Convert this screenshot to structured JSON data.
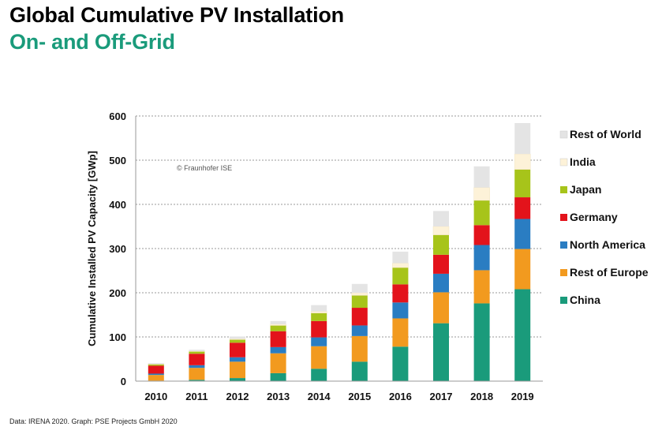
{
  "header": {
    "title": "Global Cumulative PV Installation",
    "subtitle": "On- and Off-Grid"
  },
  "footer": {
    "source": "Data: IRENA 2020. Graph: PSE Projects GmbH 2020"
  },
  "chart_data": {
    "type": "bar",
    "stacked": true,
    "title": "Global Cumulative PV Installation",
    "subtitle": "On- and Off-Grid",
    "xlabel": "",
    "ylabel": "Cumulative Installed PV Capacity [GWp]",
    "ylim": [
      0,
      600
    ],
    "yticks": [
      0,
      100,
      200,
      300,
      400,
      500,
      600
    ],
    "grid": true,
    "legend_position": "right",
    "watermark": "© Fraunhofer ISE",
    "categories": [
      "2010",
      "2011",
      "2012",
      "2013",
      "2014",
      "2015",
      "2016",
      "2017",
      "2018",
      "2019"
    ],
    "series": [
      {
        "name": "China",
        "color": "#1a9b7b",
        "values": [
          1,
          3,
          7,
          18,
          28,
          44,
          78,
          131,
          176,
          208
        ]
      },
      {
        "name": "Rest of Europe",
        "color": "#f29a1f",
        "values": [
          13,
          27,
          37,
          45,
          51,
          58,
          64,
          70,
          75,
          91
        ]
      },
      {
        "name": "North America",
        "color": "#2a7dc2",
        "values": [
          3,
          6,
          10,
          14,
          20,
          24,
          36,
          42,
          57,
          68
        ]
      },
      {
        "name": "Germany",
        "color": "#e3131b",
        "values": [
          18,
          26,
          33,
          36,
          37,
          40,
          41,
          43,
          45,
          49
        ]
      },
      {
        "name": "Japan",
        "color": "#a7c41a",
        "values": [
          3,
          5,
          7,
          13,
          18,
          28,
          38,
          45,
          56,
          63
        ]
      },
      {
        "name": "India",
        "color": "#fdf2d8",
        "values": [
          1,
          1,
          2,
          3,
          4,
          6,
          10,
          19,
          29,
          35
        ]
      },
      {
        "name": "Rest of World",
        "color": "#e4e4e4",
        "values": [
          2,
          3,
          5,
          7,
          14,
          20,
          26,
          35,
          48,
          70
        ]
      }
    ]
  }
}
